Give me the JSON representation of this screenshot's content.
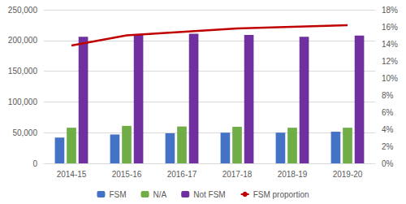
{
  "chart_data": {
    "type": "bar",
    "categories": [
      "2014-15",
      "2015-16",
      "2016-17",
      "2017-18",
      "2018-19",
      "2019-20"
    ],
    "series": [
      {
        "name": "FSM",
        "color": "#4472c4",
        "values": [
          42000,
          47000,
          49000,
          50000,
          50000,
          51500
        ]
      },
      {
        "name": "N/A",
        "color": "#70ad47",
        "values": [
          58000,
          61000,
          60000,
          59500,
          58000,
          58000
        ]
      },
      {
        "name": "Not FSM",
        "color": "#7030a0",
        "values": [
          206000,
          210000,
          211000,
          209000,
          206000,
          208000
        ]
      },
      {
        "name": "FSM proportion",
        "color": "#c00000",
        "type": "line",
        "axis": "y2",
        "marker": "none",
        "line_style": "solid",
        "values": [
          13.8,
          15.0,
          15.4,
          15.8,
          16.0,
          16.2
        ]
      }
    ],
    "ylim": [
      0,
      250000
    ],
    "yticks": [
      0,
      {
        "value": 50000,
        "label": "50,000"
      },
      {
        "value": 100000,
        "label": "100,000"
      },
      {
        "value": 150000,
        "label": "150,000"
      },
      {
        "value": 200000,
        "label": "200,000"
      },
      {
        "value": 250000,
        "label": "250,000"
      }
    ],
    "y2lim": [
      0,
      18
    ],
    "y2ticks": [
      {
        "value": 0,
        "label": "0%"
      },
      {
        "value": 2,
        "label": "2%"
      },
      {
        "value": 4,
        "label": "4%"
      },
      {
        "value": 6,
        "label": "6%"
      },
      {
        "value": 8,
        "label": "8%"
      },
      {
        "value": 10,
        "label": "10%"
      },
      {
        "value": 12,
        "label": "12%"
      },
      {
        "value": 14,
        "label": "14%"
      },
      {
        "value": 16,
        "label": "16%"
      },
      {
        "value": 18,
        "label": "18%"
      }
    ],
    "grid": true,
    "legend": "bottom"
  }
}
